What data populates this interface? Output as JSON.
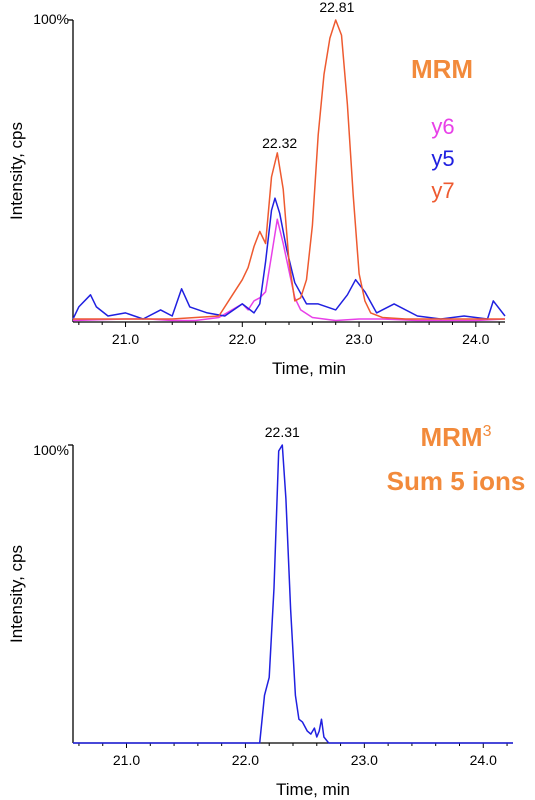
{
  "chart_data": [
    {
      "type": "line",
      "title": "MRM",
      "title_color": "#f28a3b",
      "xlabel": "Time, min",
      "ylabel": "Intensity, cps",
      "y_top_label": "100%",
      "xlim": [
        20.55,
        24.25
      ],
      "ylim": [
        0,
        100
      ],
      "xticks": [
        "21.0",
        "22.0",
        "23.0",
        "24.0"
      ],
      "legend_position": "right",
      "peak_labels": [
        {
          "text": "22.32",
          "x": 22.32,
          "y": 55
        },
        {
          "text": "22.81",
          "x": 22.81,
          "y": 100
        }
      ],
      "series": [
        {
          "name": "y6",
          "color": "#e840e8",
          "x": [
            20.55,
            20.8,
            21.0,
            21.2,
            21.4,
            21.6,
            21.8,
            22.0,
            22.05,
            22.1,
            22.15,
            22.2,
            22.25,
            22.3,
            22.35,
            22.4,
            22.45,
            22.5,
            22.6,
            22.7,
            22.8,
            23.0,
            23.2,
            23.5,
            24.0,
            24.25
          ],
          "y": [
            0.5,
            0.8,
            1.0,
            1.0,
            0.5,
            0.5,
            1.5,
            6,
            4,
            7,
            8,
            10,
            22,
            34,
            26,
            17,
            8,
            4,
            1.5,
            1,
            0.5,
            1,
            1,
            0.5,
            0.5,
            1
          ]
        },
        {
          "name": "y5",
          "color": "#2020e0",
          "x": [
            20.55,
            20.6,
            20.7,
            20.75,
            20.85,
            21.0,
            21.15,
            21.3,
            21.4,
            21.48,
            21.55,
            21.7,
            21.85,
            22.0,
            22.1,
            22.15,
            22.2,
            22.25,
            22.28,
            22.32,
            22.38,
            22.45,
            22.55,
            22.65,
            22.8,
            22.9,
            22.97,
            23.05,
            23.15,
            23.3,
            23.5,
            23.7,
            23.9,
            24.1,
            24.15,
            24.25
          ],
          "y": [
            1,
            5,
            9,
            5,
            2,
            3,
            1,
            4,
            2,
            11,
            5,
            3,
            2,
            6,
            3,
            6,
            20,
            37,
            41,
            36,
            24,
            13,
            6,
            6,
            4,
            9,
            14,
            10,
            3,
            6,
            2,
            1,
            2,
            1,
            7,
            2
          ]
        },
        {
          "name": "y7",
          "color": "#ee5a30",
          "x": [
            20.55,
            20.8,
            21.0,
            21.2,
            21.4,
            21.6,
            21.8,
            21.9,
            22.0,
            22.05,
            22.1,
            22.15,
            22.2,
            22.25,
            22.3,
            22.35,
            22.4,
            22.45,
            22.5,
            22.55,
            22.6,
            22.65,
            22.7,
            22.75,
            22.8,
            22.85,
            22.9,
            22.95,
            23.0,
            23.05,
            23.1,
            23.2,
            23.4,
            23.6,
            24.0,
            24.25
          ],
          "y": [
            1,
            1,
            1,
            1,
            1,
            1.5,
            2,
            8,
            14,
            18,
            25,
            30,
            26,
            48,
            56,
            44,
            20,
            7,
            8,
            14,
            32,
            62,
            82,
            94,
            100,
            95,
            72,
            42,
            16,
            7,
            3,
            1.5,
            1,
            1,
            1,
            1
          ]
        }
      ]
    },
    {
      "type": "line",
      "title": "MRM",
      "title_superscript": "3",
      "subtitle": "Sum 5 ions",
      "title_color": "#f28a3b",
      "xlabel": "Time, min",
      "ylabel": "Intensity, cps",
      "y_top_label": "100%",
      "xlim": [
        20.55,
        24.25
      ],
      "ylim": [
        0,
        100
      ],
      "xticks": [
        "21.0",
        "22.0",
        "23.0",
        "24.0"
      ],
      "peak_labels": [
        {
          "text": "22.31",
          "x": 22.31,
          "y": 100
        }
      ],
      "series": [
        {
          "color": "#2020e0",
          "x": [
            20.55,
            21.0,
            21.5,
            22.0,
            22.12,
            22.16,
            22.2,
            22.24,
            22.28,
            22.31,
            22.34,
            22.38,
            22.42,
            22.45,
            22.48,
            22.52,
            22.55,
            22.58,
            22.6,
            22.62,
            22.64,
            22.66,
            22.7,
            23.0,
            23.5,
            24.0,
            24.25
          ],
          "y": [
            0,
            0,
            0,
            0,
            0,
            16,
            22,
            52,
            98,
            100,
            82,
            45,
            16,
            8,
            7,
            4,
            3,
            5,
            2,
            4,
            8,
            2,
            0,
            0,
            0,
            0,
            0
          ]
        }
      ]
    }
  ]
}
